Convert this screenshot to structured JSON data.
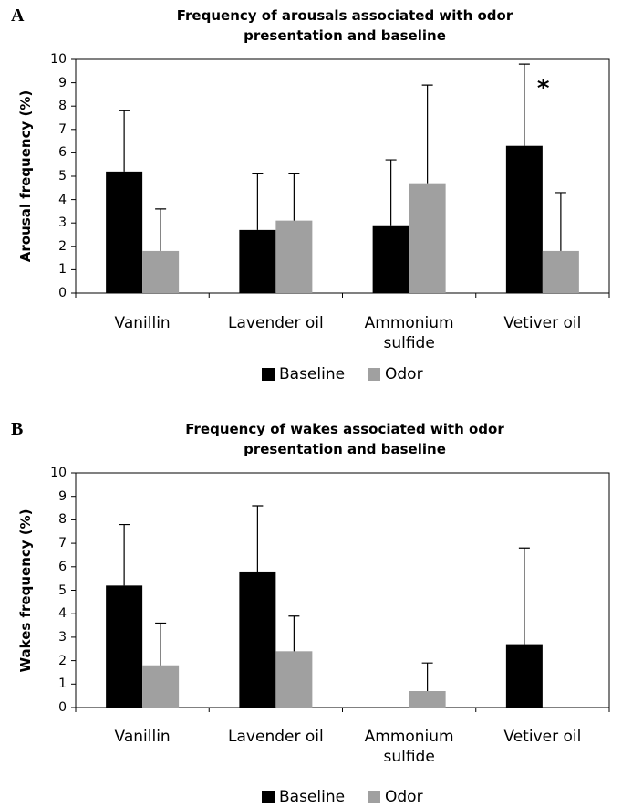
{
  "chart_data": [
    {
      "type": "bar",
      "panel": "A",
      "title": "Frequency of arousals associated with odor presentation and baseline",
      "y_label": "Arousal frequency (%)",
      "categories": [
        "Vanillin",
        "Lavender oil",
        "Ammonium sulfide",
        "Vetiver oil"
      ],
      "series": [
        {
          "name": "Baseline",
          "color": "#000000",
          "values": [
            5.2,
            2.7,
            2.9,
            6.3
          ],
          "errors": [
            2.6,
            2.4,
            2.8,
            3.5
          ]
        },
        {
          "name": "Odor",
          "color": "#a0a0a0",
          "values": [
            1.8,
            3.1,
            4.7,
            1.8
          ],
          "errors": [
            1.8,
            2.0,
            4.2,
            2.5
          ]
        }
      ],
      "annotation": "*",
      "ylim": [
        0,
        10
      ],
      "yticks": [
        0,
        1,
        2,
        3,
        4,
        5,
        6,
        7,
        8,
        9,
        10
      ]
    },
    {
      "type": "bar",
      "panel": "B",
      "title": "Frequency of wakes associated with odor presentation and baseline",
      "y_label": "Wakes frequency (%)",
      "categories": [
        "Vanillin",
        "Lavender oil",
        "Ammonium sulfide",
        "Vetiver oil"
      ],
      "series": [
        {
          "name": "Baseline",
          "color": "#000000",
          "values": [
            5.2,
            5.8,
            0,
            2.7
          ],
          "errors": [
            2.6,
            2.8,
            null,
            4.1
          ]
        },
        {
          "name": "Odor",
          "color": "#a0a0a0",
          "values": [
            1.8,
            2.4,
            0.7,
            0
          ],
          "errors": [
            1.8,
            1.5,
            1.2,
            null
          ]
        }
      ],
      "ylim": [
        0,
        10
      ],
      "yticks": [
        0,
        1,
        2,
        3,
        4,
        5,
        6,
        7,
        8,
        9,
        10
      ]
    }
  ]
}
